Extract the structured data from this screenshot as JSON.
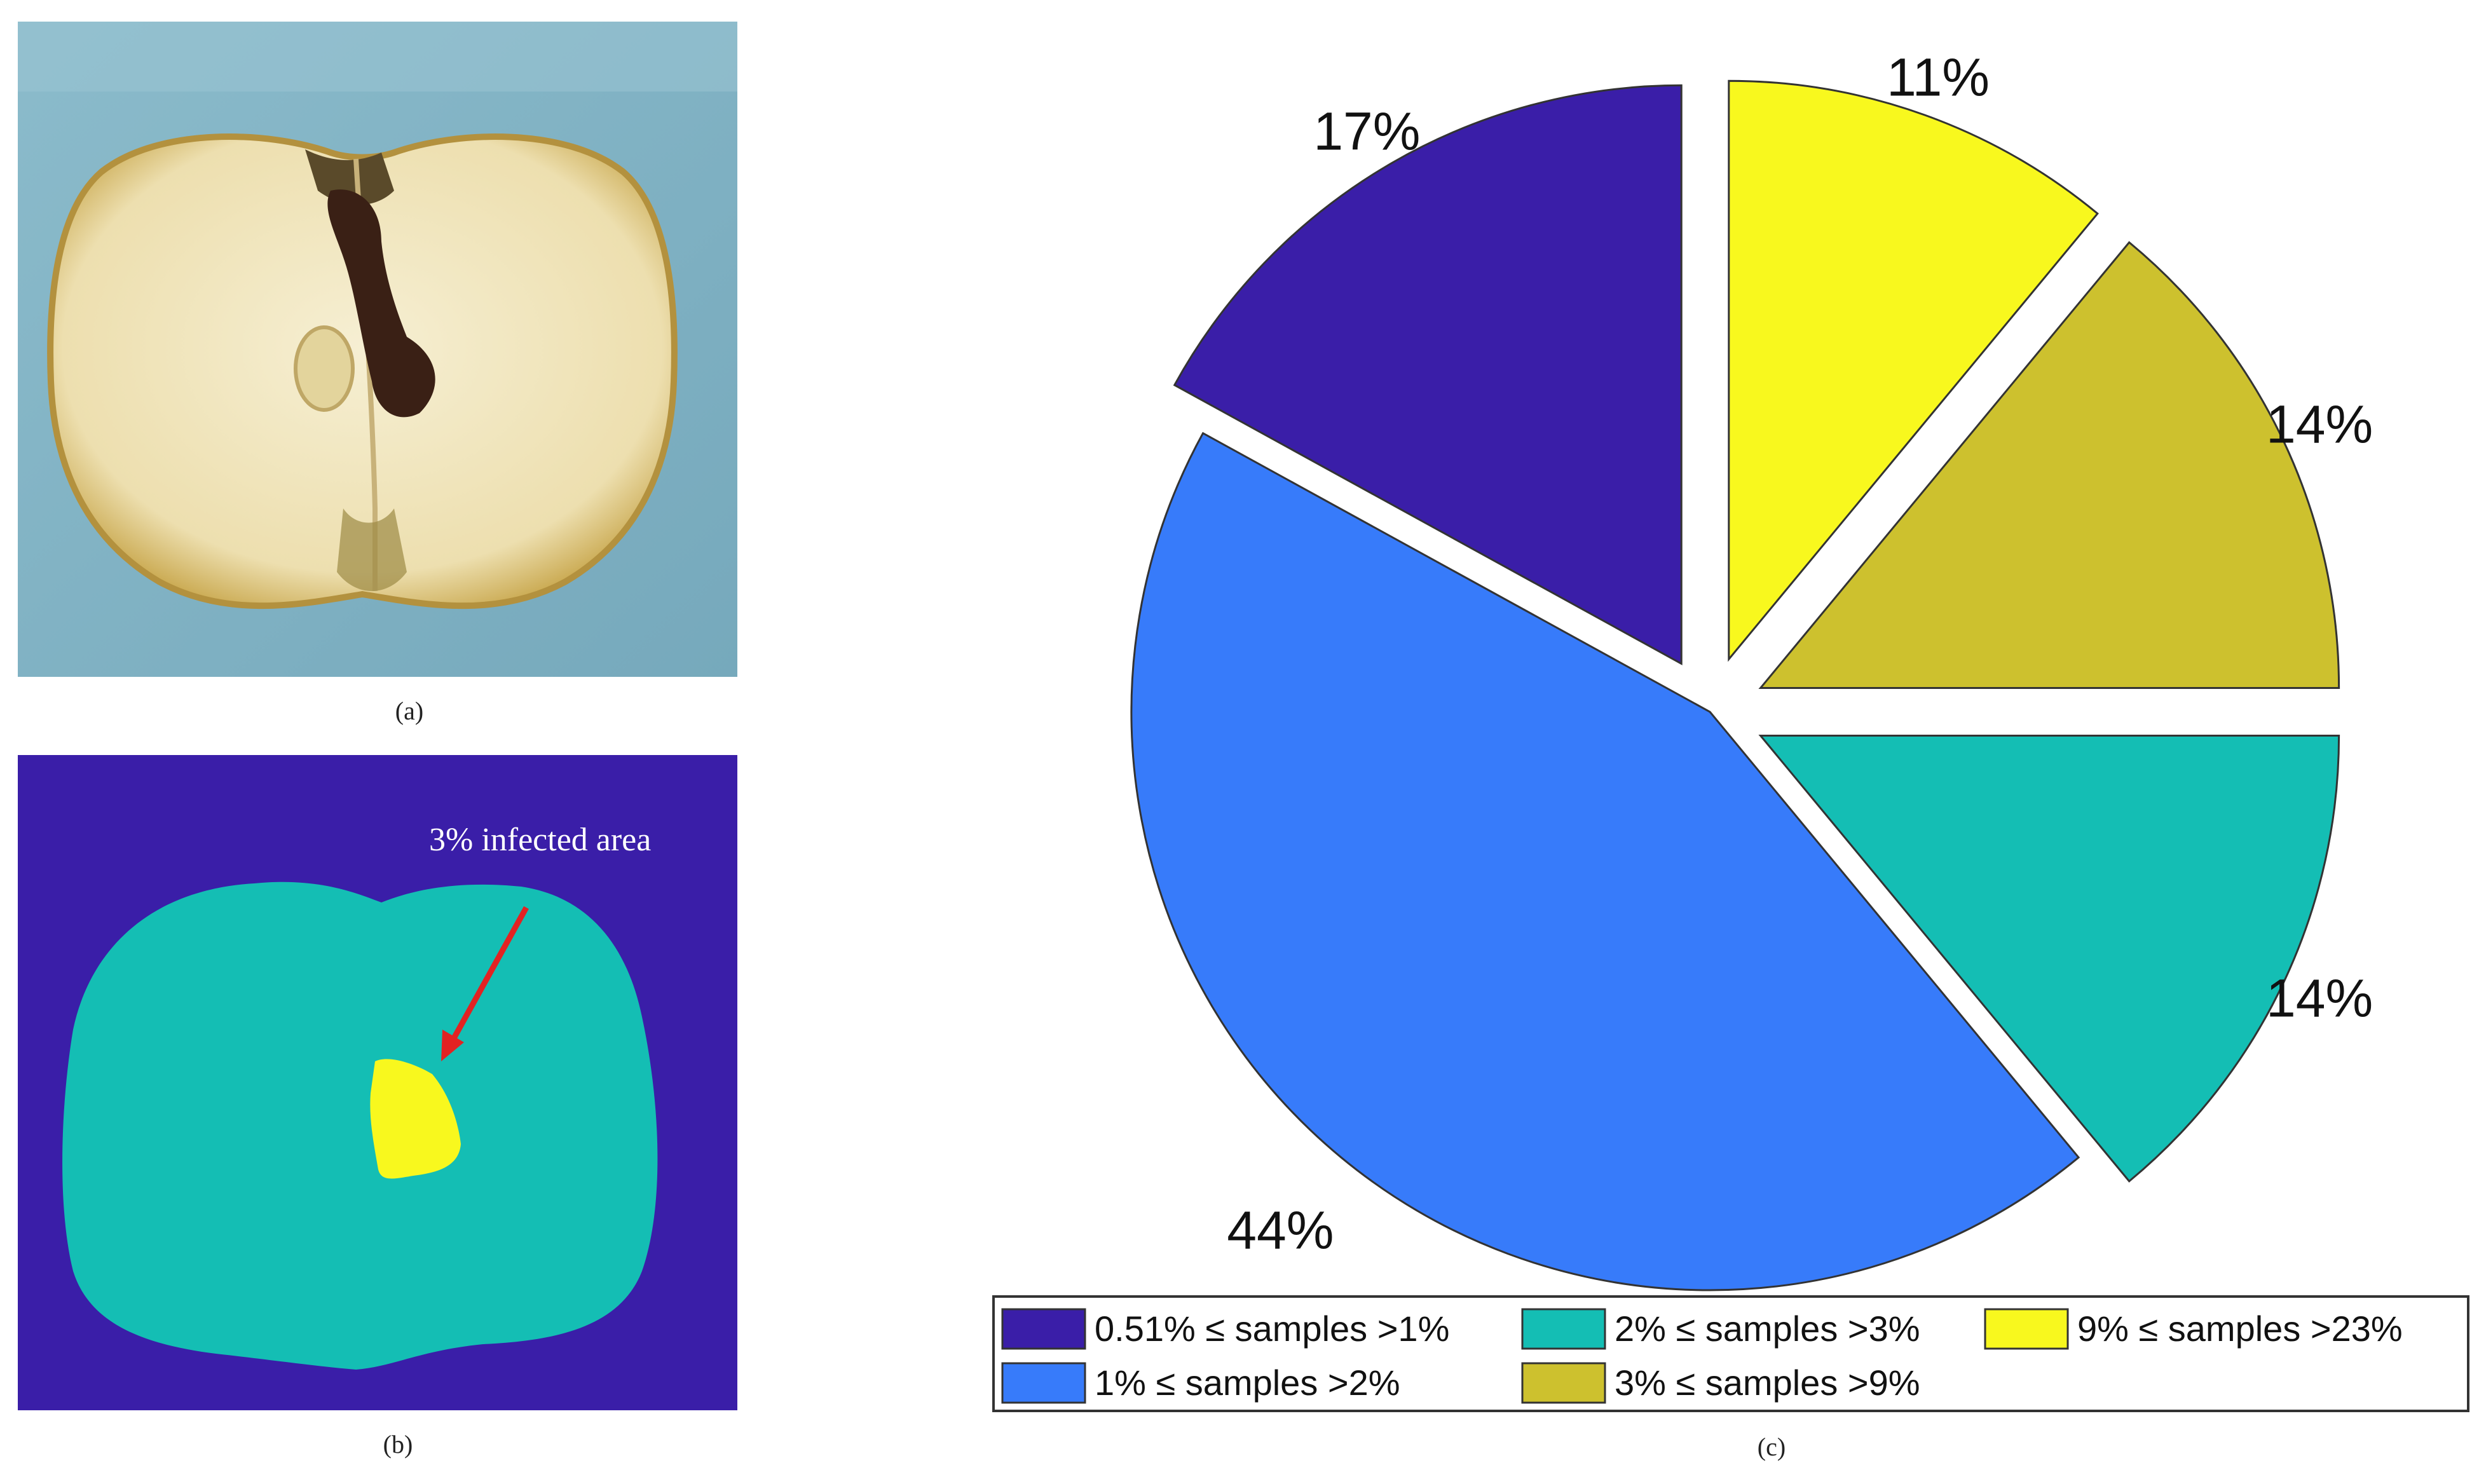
{
  "panels": {
    "a": {
      "caption": "(a)"
    },
    "b": {
      "caption": "(b)",
      "annotation": "3% infected  area"
    },
    "c": {
      "caption": "(c)"
    }
  },
  "chart_data": {
    "type": "pie",
    "exploded": true,
    "slices": [
      {
        "label": "0.51% ≤ samples >1%",
        "value": 17,
        "display": "17%",
        "color": "#3A1EA8"
      },
      {
        "label": "1% ≤ samples >2%",
        "value": 44,
        "display": "44%",
        "color": "#377BFA"
      },
      {
        "label": "2% ≤ samples >3%",
        "value": 14,
        "display": "14%",
        "color": "#14BEB4"
      },
      {
        "label": "3% ≤ samples >9%",
        "value": 14,
        "display": "14%",
        "color": "#CDC12E"
      },
      {
        "label": "9% ≤ samples >23%",
        "value": 11,
        "display": "11%",
        "color": "#F8F81E"
      }
    ],
    "legend": {
      "position": "bottom",
      "columns": 3
    }
  },
  "colors": {
    "photo_background": "#7FB2C4",
    "apple_flesh": "#F2E8C6",
    "apple_skin": "#C9A84E",
    "rot": "#3A2015",
    "segmentation_background": "#3A1EA8",
    "segmentation_apple": "#14BEB4",
    "segmentation_infection": "#F8F81E",
    "arrow": "#E32222"
  }
}
